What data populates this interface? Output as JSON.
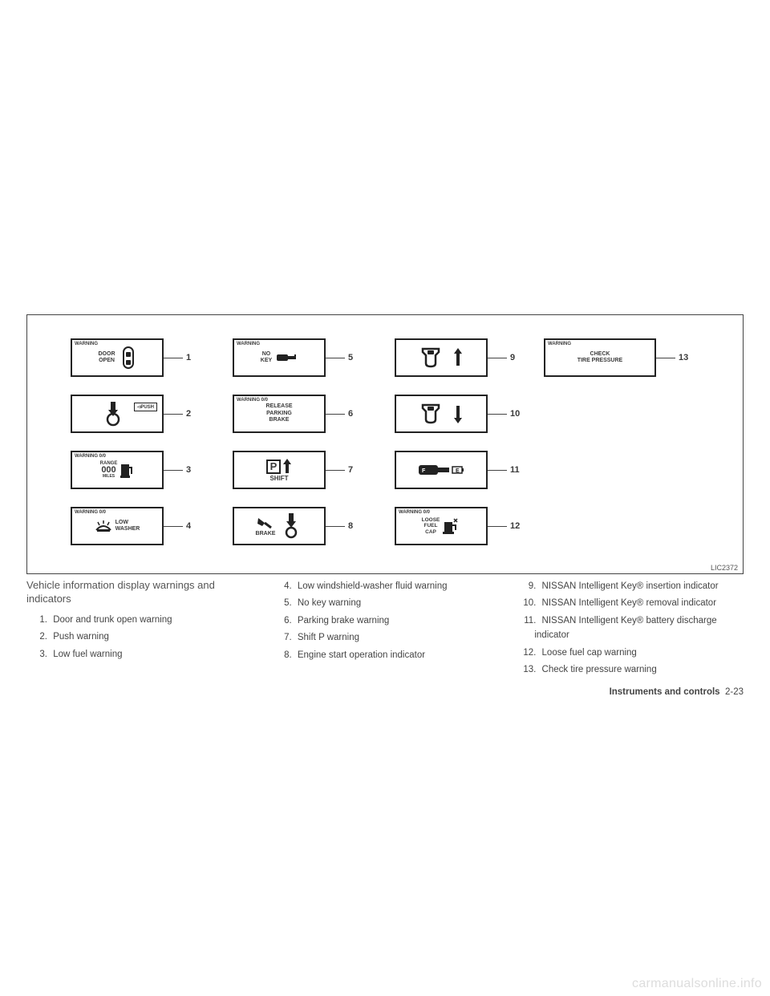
{
  "diagram": {
    "code": "LIC2372",
    "indicators": [
      {
        "num": "1",
        "warning": "WARNING",
        "text1": "DOOR",
        "text2": "OPEN"
      },
      {
        "num": "2",
        "warning": "",
        "text1": "PUSH",
        "text2": ""
      },
      {
        "num": "3",
        "warning": "WARNING 0/0",
        "text1": "RANGE",
        "text2": "000",
        "text3": "MILES"
      },
      {
        "num": "4",
        "warning": "WARNING 0/0",
        "text1": "LOW",
        "text2": "WASHER"
      },
      {
        "num": "5",
        "warning": "WARNING",
        "text1": "NO",
        "text2": "KEY"
      },
      {
        "num": "6",
        "warning": "WARNING 0/0",
        "text1": "RELEASE",
        "text2": "PARKING",
        "text3": "BRAKE"
      },
      {
        "num": "7",
        "warning": "",
        "text1": "SHIFT"
      },
      {
        "num": "8",
        "warning": "",
        "text1": "BRAKE"
      },
      {
        "num": "9",
        "warning": ""
      },
      {
        "num": "10",
        "warning": ""
      },
      {
        "num": "11",
        "warning": ""
      },
      {
        "num": "12",
        "warning": "WARNING 0/0",
        "text1": "LOOSE",
        "text2": "FUEL",
        "text3": "CAP"
      },
      {
        "num": "13",
        "warning": "WARNING",
        "text1": "CHECK",
        "text2": "TIRE PRESSURE"
      }
    ]
  },
  "body": {
    "subhead": "Vehicle information display warnings and indicators",
    "col1": [
      "Door and trunk open warning",
      "Push warning",
      "Low fuel warning"
    ],
    "col2": [
      "Low windshield-washer fluid warning",
      "No key warning",
      "Parking brake warning",
      "Shift P warning",
      "Engine start operation indicator"
    ],
    "col3": [
      "NISSAN Intelligent Key® insertion indicator",
      "NISSAN Intelligent Key® removal indicator",
      "NISSAN Intelligent Key® battery discharge indicator",
      "Loose fuel cap warning",
      "Check tire pressure warning"
    ],
    "col1_start": 1,
    "col2_start": 4,
    "col3_start": 9
  },
  "footer": {
    "section": "Instruments and controls",
    "page": "2-23"
  },
  "watermark": "carmanualsonline.info"
}
